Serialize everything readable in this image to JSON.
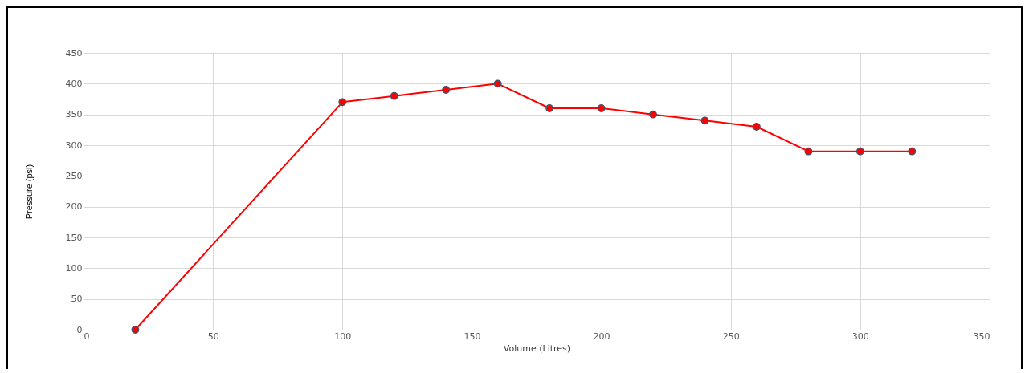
{
  "chart_data": {
    "type": "line",
    "xlabel": "Volume (Litres)",
    "ylabel": "Pressure (psi)",
    "x": [
      20,
      100,
      120,
      140,
      160,
      180,
      200,
      220,
      240,
      260,
      280,
      300,
      320
    ],
    "series": [
      {
        "color": "#ff0000",
        "values": [
          0,
          370,
          380,
          390,
          400,
          360,
          360,
          350,
          340,
          330,
          290,
          290,
          290
        ]
      }
    ],
    "xlim": [
      0,
      350
    ],
    "xticks": [
      0,
      50,
      100,
      150,
      200,
      250,
      300,
      350
    ],
    "ylim": [
      0,
      450
    ],
    "yticks": [
      0,
      50,
      100,
      150,
      200,
      250,
      300,
      350,
      400,
      450
    ],
    "grid": true,
    "marker": "circle",
    "line_style": "solid"
  }
}
